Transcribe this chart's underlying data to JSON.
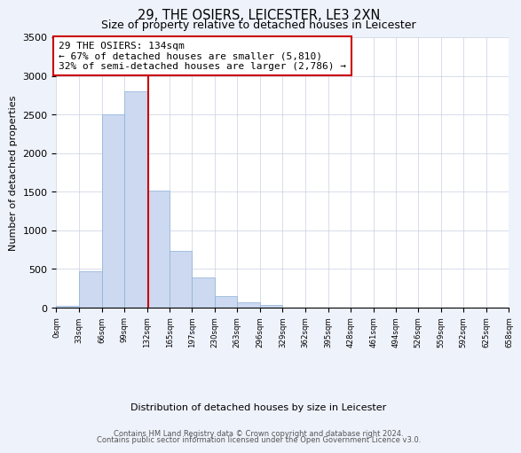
{
  "title": "29, THE OSIERS, LEICESTER, LE3 2XN",
  "subtitle": "Size of property relative to detached houses in Leicester",
  "xlabel": "Distribution of detached houses by size in Leicester",
  "ylabel": "Number of detached properties",
  "bar_color": "#ccd9f0",
  "bar_edge_color": "#8ab0d8",
  "vline_x": 134,
  "vline_color": "#cc0000",
  "annotation_line1": "29 THE OSIERS: 134sqm",
  "annotation_line2": "← 67% of detached houses are smaller (5,810)",
  "annotation_line3": "32% of semi-detached houses are larger (2,786) →",
  "annotation_box_edge": "#cc0000",
  "bin_edges": [
    0,
    33,
    66,
    99,
    132,
    165,
    197,
    230,
    263,
    296,
    329,
    362,
    395,
    428,
    461,
    494,
    526,
    559,
    592,
    625,
    658
  ],
  "bar_heights": [
    20,
    470,
    2500,
    2800,
    1510,
    735,
    390,
    145,
    65,
    30,
    0,
    0,
    0,
    0,
    0,
    0,
    0,
    0,
    0,
    0
  ],
  "ylim": [
    0,
    3500
  ],
  "xlim": [
    0,
    658
  ],
  "tick_labels": [
    "0sqm",
    "33sqm",
    "66sqm",
    "99sqm",
    "132sqm",
    "165sqm",
    "197sqm",
    "230sqm",
    "263sqm",
    "296sqm",
    "329sqm",
    "362sqm",
    "395sqm",
    "428sqm",
    "461sqm",
    "494sqm",
    "526sqm",
    "559sqm",
    "592sqm",
    "625sqm",
    "658sqm"
  ],
  "footnote1": "Contains HM Land Registry data © Crown copyright and database right 2024.",
  "footnote2": "Contains public sector information licensed under the Open Government Licence v3.0.",
  "bg_color": "#eef2fb",
  "plot_bg_color": "#ffffff",
  "grid_color": "#c8d0e0"
}
